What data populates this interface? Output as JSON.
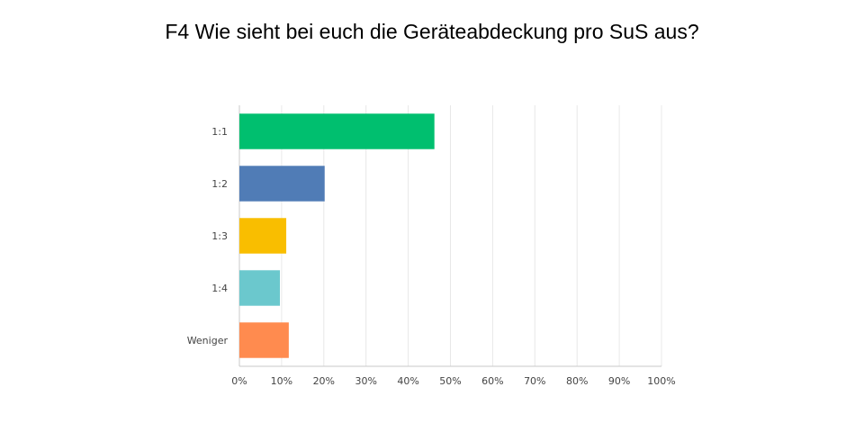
{
  "chart_data": {
    "type": "bar",
    "orientation": "horizontal",
    "title": "F4 Wie sieht bei euch die Geräteabdeckung pro SuS aus?",
    "categories": [
      "1:1",
      "1:2",
      "1:3",
      "1:4",
      "Weniger"
    ],
    "values": [
      46.2,
      20.2,
      11.1,
      9.6,
      11.7
    ],
    "colors": [
      "#00bf6f",
      "#507cb6",
      "#f9be00",
      "#6bc8cd",
      "#ff8b4f"
    ],
    "xlim": [
      0,
      100
    ],
    "xticks": [
      "0%",
      "10%",
      "20%",
      "30%",
      "40%",
      "50%",
      "60%",
      "70%",
      "80%",
      "90%",
      "100%"
    ],
    "xlabel": "",
    "ylabel": "",
    "grid": true
  }
}
